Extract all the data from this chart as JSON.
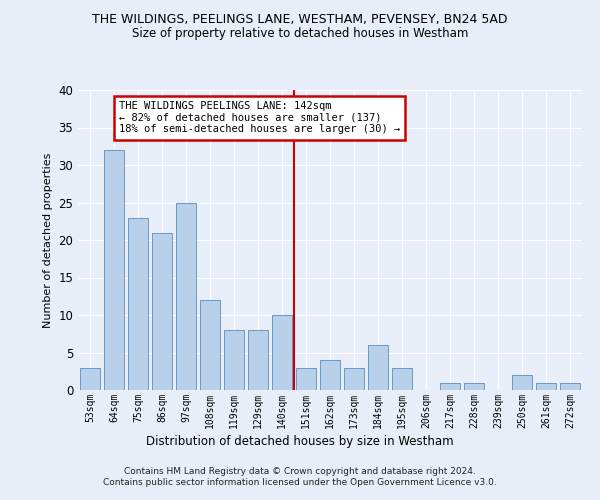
{
  "title": "THE WILDINGS, PEELINGS LANE, WESTHAM, PEVENSEY, BN24 5AD",
  "subtitle": "Size of property relative to detached houses in Westham",
  "xlabel_bottom": "Distribution of detached houses by size in Westham",
  "ylabel": "Number of detached properties",
  "footer": "Contains HM Land Registry data © Crown copyright and database right 2024.\nContains public sector information licensed under the Open Government Licence v3.0.",
  "bar_labels": [
    "53sqm",
    "64sqm",
    "75sqm",
    "86sqm",
    "97sqm",
    "108sqm",
    "119sqm",
    "129sqm",
    "140sqm",
    "151sqm",
    "162sqm",
    "173sqm",
    "184sqm",
    "195sqm",
    "206sqm",
    "217sqm",
    "228sqm",
    "239sqm",
    "250sqm",
    "261sqm",
    "272sqm"
  ],
  "bar_values": [
    3,
    32,
    23,
    21,
    25,
    12,
    8,
    8,
    10,
    3,
    4,
    3,
    6,
    3,
    0,
    1,
    1,
    0,
    2,
    1,
    1
  ],
  "bar_color": "#b8d0ea",
  "bar_edgecolor": "#6699cc",
  "bg_color": "#e8eef8",
  "grid_color": "#ffffff",
  "vline_x_index": 8.5,
  "vline_color": "#cc0000",
  "annotation_text": "THE WILDINGS PEELINGS LANE: 142sqm\n← 82% of detached houses are smaller (137)\n18% of semi-detached houses are larger (30) →",
  "annotation_box_edgecolor": "#cc0000",
  "ylim": [
    0,
    40
  ],
  "yticks": [
    0,
    5,
    10,
    15,
    20,
    25,
    30,
    35,
    40
  ]
}
